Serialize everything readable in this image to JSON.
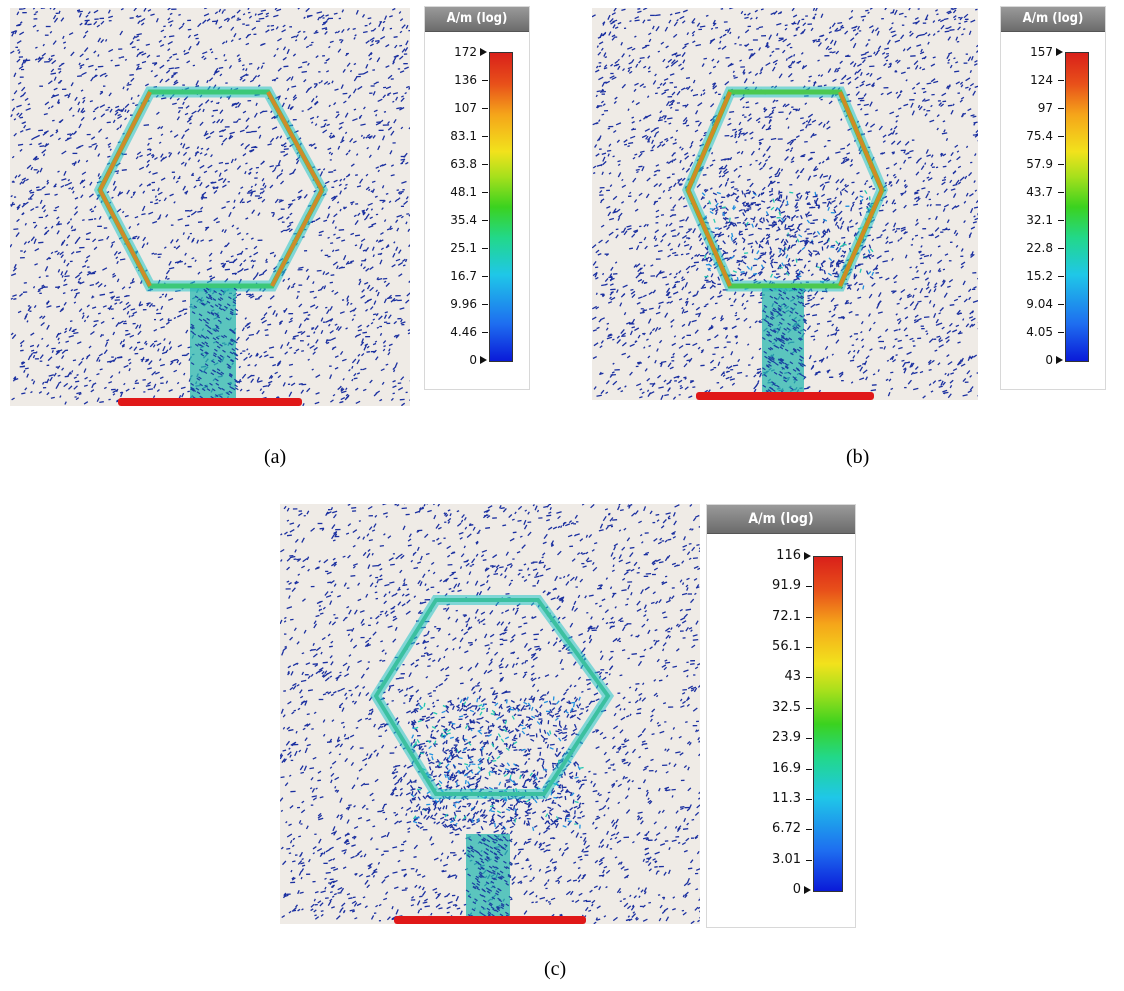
{
  "panels": [
    {
      "id": "a",
      "caption": "(a)",
      "legend_title": "A/m (log)",
      "ticks": [
        "172",
        "136",
        "107",
        "83.1",
        "63.8",
        "48.1",
        "35.4",
        "25.1",
        "16.7",
        "9.96",
        "4.46",
        "0"
      ]
    },
    {
      "id": "b",
      "caption": "(b)",
      "legend_title": "A/m (log)",
      "ticks": [
        "157",
        "124",
        "97",
        "75.4",
        "57.9",
        "43.7",
        "32.1",
        "22.8",
        "15.2",
        "9.04",
        "4.05",
        "0"
      ]
    },
    {
      "id": "c",
      "caption": "(c)",
      "legend_title": "A/m (log)",
      "ticks": [
        "116",
        "91.9",
        "72.1",
        "56.1",
        "43",
        "32.5",
        "23.9",
        "16.9",
        "11.3",
        "6.72",
        "3.01",
        "0"
      ]
    }
  ],
  "colors": {
    "background": "#efebe6",
    "arrows": "#1a2fa0",
    "feed_port": "#e01818"
  }
}
